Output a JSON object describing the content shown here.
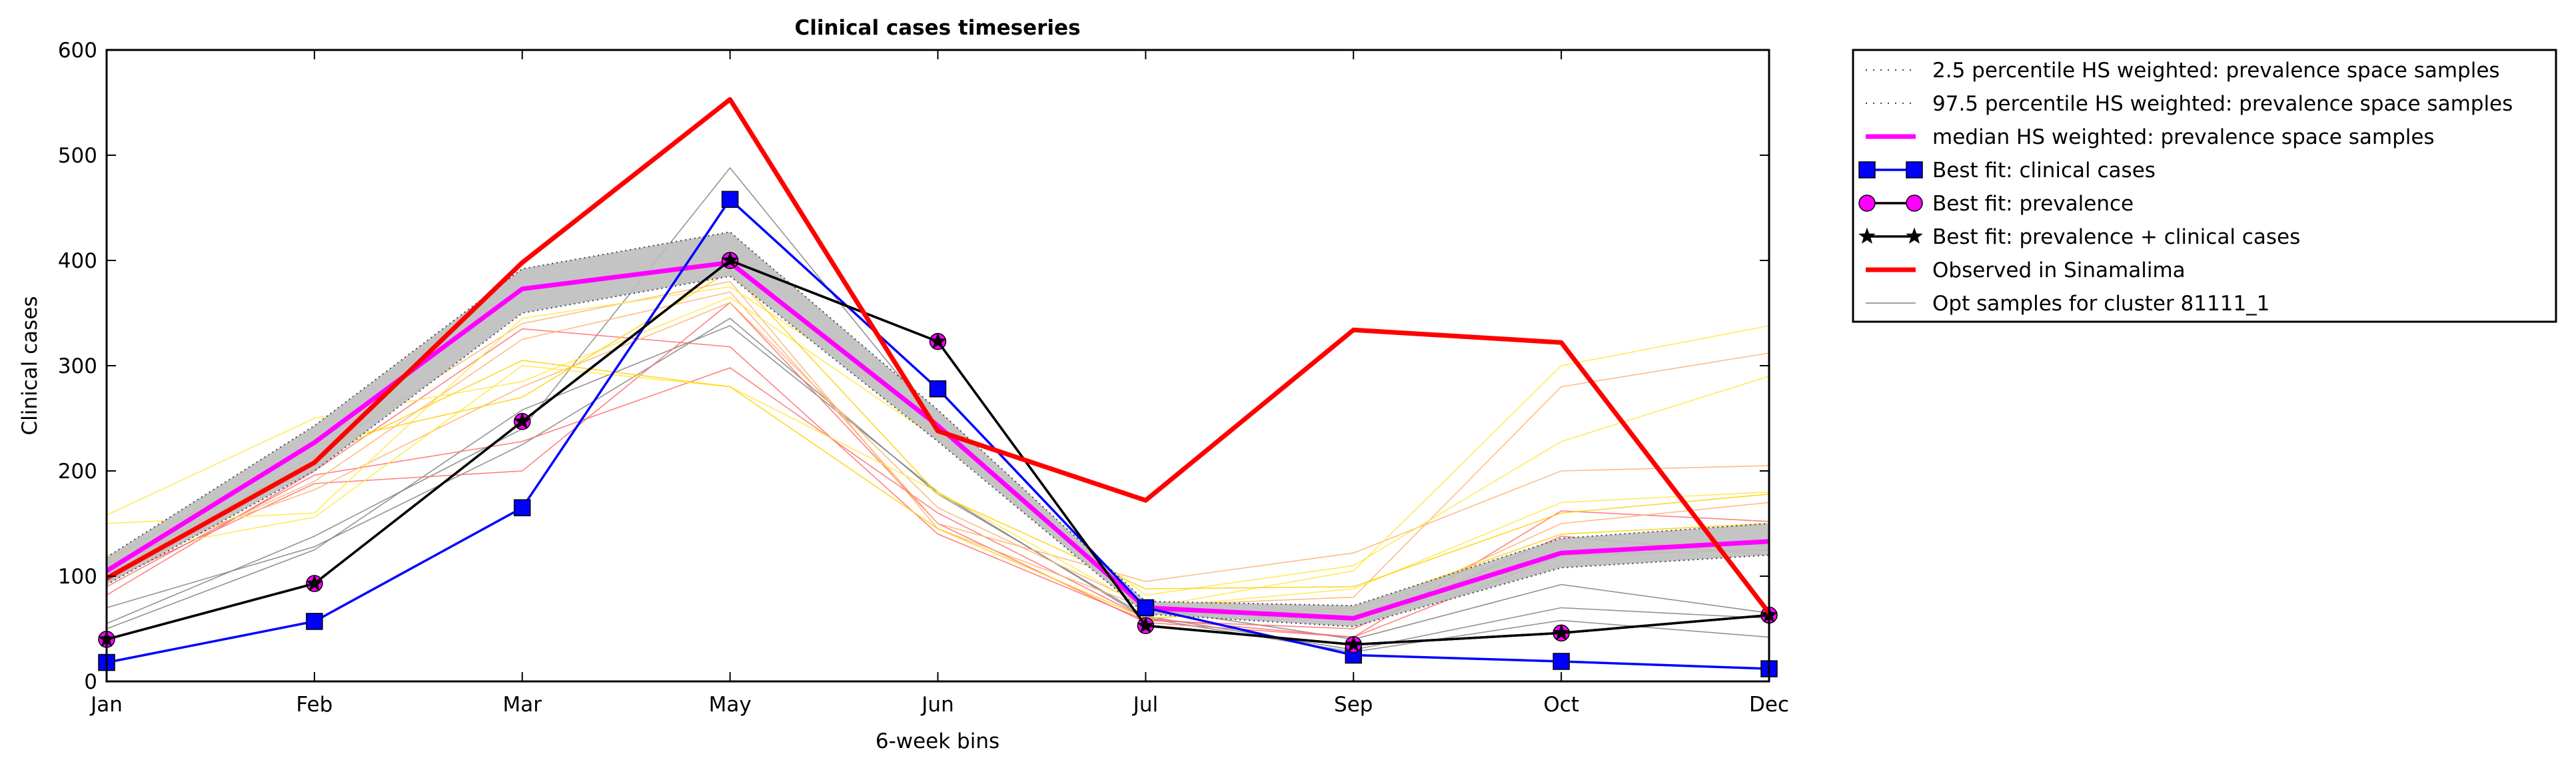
{
  "chart_data": {
    "type": "line",
    "title": "Clinical cases timeseries",
    "xlabel": "6-week bins",
    "ylabel": "Clinical cases",
    "categories": [
      "Jan",
      "Feb",
      "Mar",
      "May",
      "Jun",
      "Jul",
      "Sep",
      "Oct",
      "Dec"
    ],
    "ylim": [
      0,
      600
    ],
    "yticks": [
      0,
      100,
      200,
      300,
      400,
      500,
      600
    ],
    "grid": false,
    "legend_position": "outside-right",
    "band": {
      "lower_label": "2.5 percentile HS weighted: prevalence space samples",
      "upper_label": "97.5 percentile HS weighted: prevalence space samples",
      "lower": [
        92,
        200,
        350,
        385,
        228,
        64,
        52,
        108,
        120
      ],
      "upper": [
        118,
        243,
        392,
        427,
        258,
        76,
        72,
        136,
        150
      ],
      "color": "#bebebe"
    },
    "series": [
      {
        "name": "median HS weighted: prevalence space samples",
        "values": [
          105,
          227,
          373,
          398,
          243,
          70,
          60,
          122,
          133
        ],
        "color": "#ff00ff",
        "marker": "none",
        "style": "median"
      },
      {
        "name": "Best fit: clinical cases",
        "values": [
          18,
          57,
          165,
          458,
          278,
          70,
          25,
          19,
          12
        ],
        "color": "#0000ff",
        "marker": "square",
        "style": "fit"
      },
      {
        "name": "Best fit: prevalence",
        "values": [
          40,
          93,
          247,
          400,
          323,
          53,
          35,
          46,
          63
        ],
        "color": "#000000",
        "marker": "circle",
        "style": "fit"
      },
      {
        "name": "Best fit: prevalence + clinical cases",
        "values": [
          40,
          93,
          247,
          400,
          323,
          53,
          35,
          46,
          63
        ],
        "color": "#000000",
        "marker": "star",
        "style": "fit"
      },
      {
        "name": "Observed in Sinamalima",
        "values": [
          98,
          208,
          398,
          553,
          238,
          172,
          334,
          322,
          65
        ],
        "color": "#ff0000",
        "marker": "none",
        "style": "observed"
      }
    ],
    "samples_label": "Opt samples for cluster 81111_1",
    "samples": [
      {
        "color": "#808080",
        "values": [
          55,
          138,
          240,
          488,
          245,
          70,
          40,
          92,
          65
        ]
      },
      {
        "color": "#808080",
        "values": [
          70,
          128,
          225,
          345,
          178,
          62,
          30,
          70,
          60
        ]
      },
      {
        "color": "#808080",
        "values": [
          50,
          125,
          258,
          338,
          180,
          60,
          28,
          58,
          42
        ]
      },
      {
        "color": "#ff6b6b",
        "values": [
          95,
          188,
          200,
          360,
          150,
          56,
          42,
          162,
          152
        ]
      },
      {
        "color": "#ff6b6b",
        "values": [
          82,
          200,
          335,
          318,
          140,
          58,
          50,
          138,
          120
        ]
      },
      {
        "color": "#ff6b6b",
        "values": [
          90,
          196,
          228,
          298,
          160,
          60,
          42,
          120,
          125
        ]
      },
      {
        "color": "#ffb070",
        "values": [
          100,
          190,
          325,
          370,
          150,
          95,
          122,
          200,
          205
        ]
      },
      {
        "color": "#ffb070",
        "values": [
          112,
          182,
          280,
          360,
          165,
          72,
          80,
          280,
          312
        ]
      },
      {
        "color": "#ffb070",
        "values": [
          96,
          215,
          340,
          380,
          145,
          70,
          60,
          150,
          170
        ]
      },
      {
        "color": "#ffe840",
        "values": [
          150,
          160,
          345,
          375,
          245,
          70,
          105,
          300,
          338
        ]
      },
      {
        "color": "#ffe840",
        "values": [
          158,
          250,
          285,
          365,
          230,
          82,
          110,
          228,
          290
        ]
      },
      {
        "color": "#ffe840",
        "values": [
          120,
          156,
          300,
          280,
          180,
          70,
          88,
          170,
          180
        ]
      },
      {
        "color": "#ffd000",
        "values": [
          105,
          210,
          305,
          280,
          145,
          60,
          70,
          140,
          150
        ]
      },
      {
        "color": "#ffd000",
        "values": [
          115,
          225,
          270,
          390,
          178,
          88,
          90,
          160,
          178
        ]
      }
    ]
  }
}
